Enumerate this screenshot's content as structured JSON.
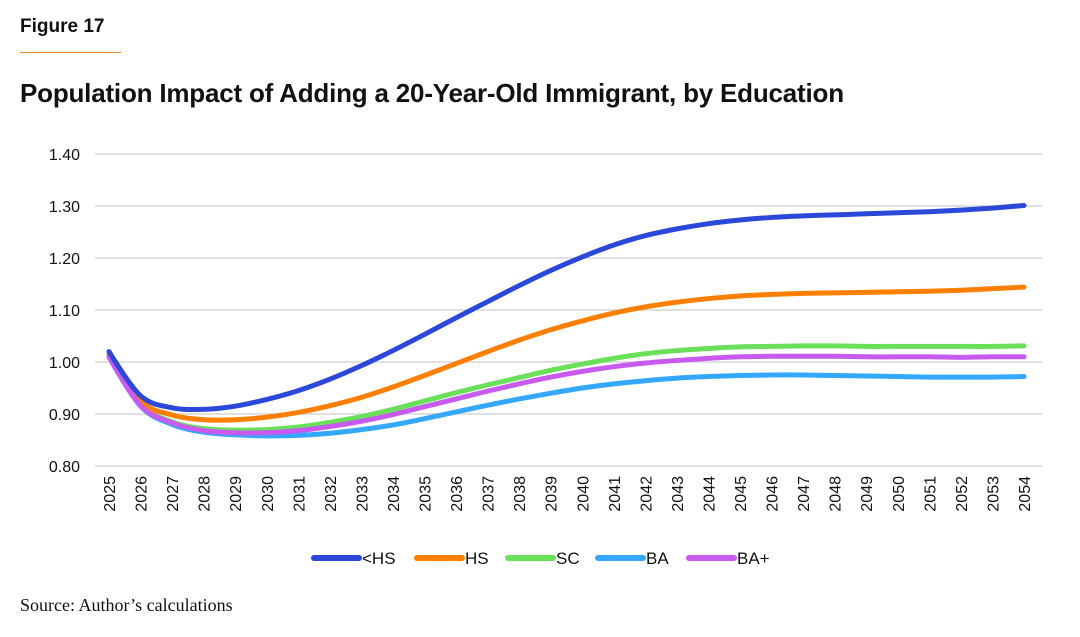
{
  "figure_label": "Figure 17",
  "source": "Source: Author’s calculations",
  "chart_data": {
    "type": "line",
    "title": "Population Impact of Adding a 20-Year-Old Immigrant, by Education",
    "xlabel": "",
    "ylabel": "",
    "ylim": [
      0.8,
      1.4
    ],
    "yticks": [
      "0.80",
      "0.90",
      "1.00",
      "1.10",
      "1.20",
      "1.30",
      "1.40"
    ],
    "grid": true,
    "legend_position": "bottom",
    "x": [
      "2025",
      "2026",
      "2027",
      "2028",
      "2029",
      "2030",
      "2031",
      "2032",
      "2033",
      "2034",
      "2035",
      "2036",
      "2037",
      "2038",
      "2039",
      "2040",
      "2041",
      "2042",
      "2043",
      "2044",
      "2045",
      "2046",
      "2047",
      "2048",
      "2049",
      "2050",
      "2051",
      "2052",
      "2053",
      "2054"
    ],
    "series": [
      {
        "name": "<HS",
        "color": "#2b48d9",
        "values": [
          1.02,
          0.935,
          0.912,
          0.909,
          0.915,
          0.928,
          0.945,
          0.967,
          0.993,
          1.022,
          1.053,
          1.085,
          1.116,
          1.147,
          1.176,
          1.202,
          1.225,
          1.243,
          1.256,
          1.266,
          1.273,
          1.278,
          1.281,
          1.283,
          1.285,
          1.287,
          1.289,
          1.292,
          1.296,
          1.301
        ]
      },
      {
        "name": "HS",
        "color": "#ff8000",
        "values": [
          1.015,
          0.925,
          0.898,
          0.889,
          0.889,
          0.894,
          0.903,
          0.916,
          0.932,
          0.952,
          0.974,
          0.997,
          1.02,
          1.042,
          1.062,
          1.079,
          1.094,
          1.106,
          1.115,
          1.122,
          1.127,
          1.13,
          1.132,
          1.133,
          1.134,
          1.135,
          1.136,
          1.138,
          1.141,
          1.144
        ]
      },
      {
        "name": "SC",
        "color": "#6ae05a",
        "values": [
          1.012,
          0.918,
          0.885,
          0.872,
          0.869,
          0.87,
          0.875,
          0.884,
          0.895,
          0.909,
          0.925,
          0.941,
          0.956,
          0.97,
          0.984,
          0.996,
          1.007,
          1.016,
          1.022,
          1.026,
          1.029,
          1.03,
          1.031,
          1.031,
          1.03,
          1.03,
          1.03,
          1.03,
          1.03,
          1.031
        ]
      },
      {
        "name": "BA",
        "color": "#34a8ff",
        "values": [
          1.01,
          0.915,
          0.88,
          0.865,
          0.86,
          0.858,
          0.859,
          0.863,
          0.87,
          0.879,
          0.891,
          0.904,
          0.917,
          0.929,
          0.94,
          0.95,
          0.958,
          0.964,
          0.969,
          0.972,
          0.974,
          0.975,
          0.975,
          0.974,
          0.973,
          0.972,
          0.971,
          0.971,
          0.971,
          0.972
        ]
      },
      {
        "name": "BA+",
        "color": "#c85af0",
        "values": [
          1.01,
          0.916,
          0.883,
          0.868,
          0.864,
          0.864,
          0.868,
          0.876,
          0.886,
          0.899,
          0.914,
          0.929,
          0.944,
          0.958,
          0.971,
          0.982,
          0.991,
          0.998,
          1.003,
          1.007,
          1.01,
          1.011,
          1.011,
          1.011,
          1.01,
          1.01,
          1.01,
          1.009,
          1.01,
          1.01
        ]
      }
    ]
  }
}
